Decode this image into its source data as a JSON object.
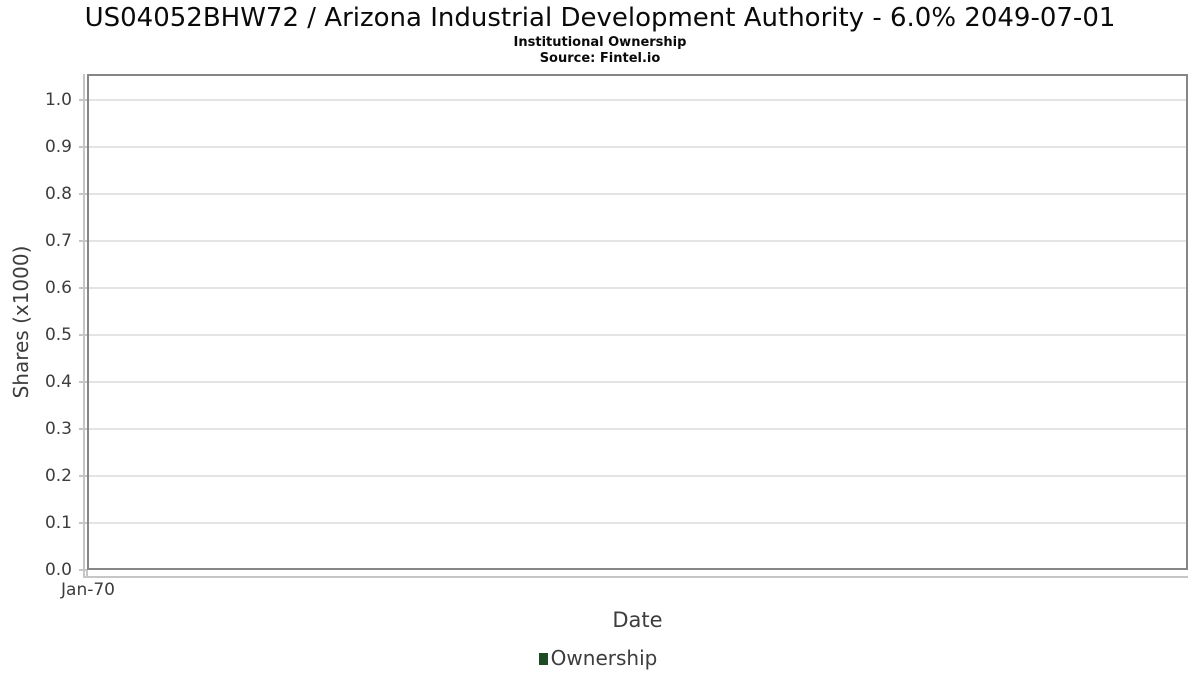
{
  "header": {
    "title": "US04052BHW72 / Arizona Industrial Development Authority - 6.0% 2049-07-01",
    "subtitle": "Institutional Ownership",
    "source": "Source: Fintel.io"
  },
  "axes": {
    "y_label": "Shares (x1000)",
    "x_label": "Date",
    "y_ticks": [
      "0.0",
      "0.1",
      "0.2",
      "0.3",
      "0.4",
      "0.5",
      "0.6",
      "0.7",
      "0.8",
      "0.9",
      "1.0"
    ],
    "x_ticks": [
      "Jan-70"
    ]
  },
  "legend": {
    "items": [
      {
        "label": "Ownership",
        "color": "#1f4b24"
      }
    ]
  },
  "colors": {
    "background": "#ffffff",
    "plot_border": "#868686",
    "axis_line": "#c6c6c6",
    "gridline": "#e4e4e4",
    "tick_text": "#3d3d3d",
    "title_text": "#0a0a0a",
    "legend_swatch": "#1f4b24"
  },
  "chart_data": {
    "type": "bar",
    "title": "US04052BHW72 / Arizona Industrial Development Authority - 6.0% 2049-07-01",
    "subtitle": "Institutional Ownership",
    "source": "Source: Fintel.io",
    "xlabel": "Date",
    "ylabel": "Shares (x1000)",
    "x": [
      "Jan-70"
    ],
    "series": [
      {
        "name": "Ownership",
        "color": "#1f4b24",
        "values": []
      }
    ],
    "ylim": [
      0,
      1.055
    ],
    "y_tick_step": 0.1,
    "grid": true,
    "legend_position": "bottom",
    "plot_is_empty": true
  }
}
